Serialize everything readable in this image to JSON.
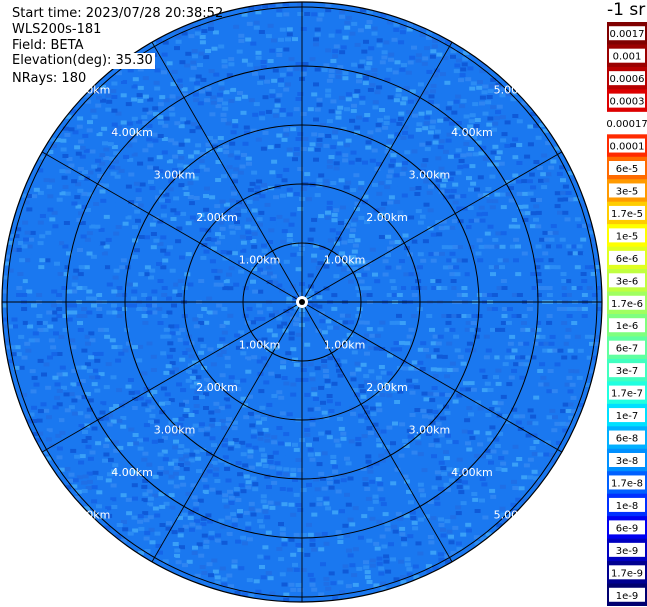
{
  "header": {
    "start_time": "Start time: 2023/07/28 20:38:52",
    "instrument": "WLS200s-181",
    "field": "Field: BETA",
    "elevation": "Elevation(deg): 35.30",
    "nrays": "NRays: 180"
  },
  "ppi": {
    "range_rings": [
      {
        "label": "1.00km"
      },
      {
        "label": "2.00km"
      },
      {
        "label": "3.00km"
      },
      {
        "label": "4.00km"
      },
      {
        "label": "5.00km"
      }
    ],
    "spoke_count": 12
  },
  "colorbar": {
    "unit_label": "-1 sr",
    "entries": [
      {
        "label": "0.0017",
        "color": "#800000"
      },
      {
        "label": "0.001",
        "color": "#9a0000"
      },
      {
        "label": "0.0006",
        "color": "#b80000"
      },
      {
        "label": "0.0003",
        "color": "#dd0000"
      },
      {
        "label": "0.00017",
        "color": "#ffffff"
      },
      {
        "label": "0.0001",
        "color": "#ff2a00"
      },
      {
        "label": "6e-5",
        "color": "#ff6a00"
      },
      {
        "label": "3e-5",
        "color": "#ff9a00"
      },
      {
        "label": "1.7e-5",
        "color": "#ffcc00"
      },
      {
        "label": "1e-5",
        "color": "#ffff00"
      },
      {
        "label": "6e-6",
        "color": "#e0ff20"
      },
      {
        "label": "3e-6",
        "color": "#c0ff40"
      },
      {
        "label": "1.7e-6",
        "color": "#a0ff60"
      },
      {
        "label": "1e-6",
        "color": "#7fff7f"
      },
      {
        "label": "6e-7",
        "color": "#60ffa0"
      },
      {
        "label": "3e-7",
        "color": "#40ffc0"
      },
      {
        "label": "1.7e-7",
        "color": "#20ffe0"
      },
      {
        "label": "1e-7",
        "color": "#00e0ff"
      },
      {
        "label": "6e-8",
        "color": "#00b0ff"
      },
      {
        "label": "3e-8",
        "color": "#0090ff"
      },
      {
        "label": "1.7e-8",
        "color": "#0060ff"
      },
      {
        "label": "1e-8",
        "color": "#0030ff"
      },
      {
        "label": "6e-9",
        "color": "#0000f0"
      },
      {
        "label": "3e-9",
        "color": "#0000c0"
      },
      {
        "label": "1.7e-9",
        "color": "#000090"
      },
      {
        "label": "1e-9",
        "color": "#000070"
      }
    ]
  }
}
